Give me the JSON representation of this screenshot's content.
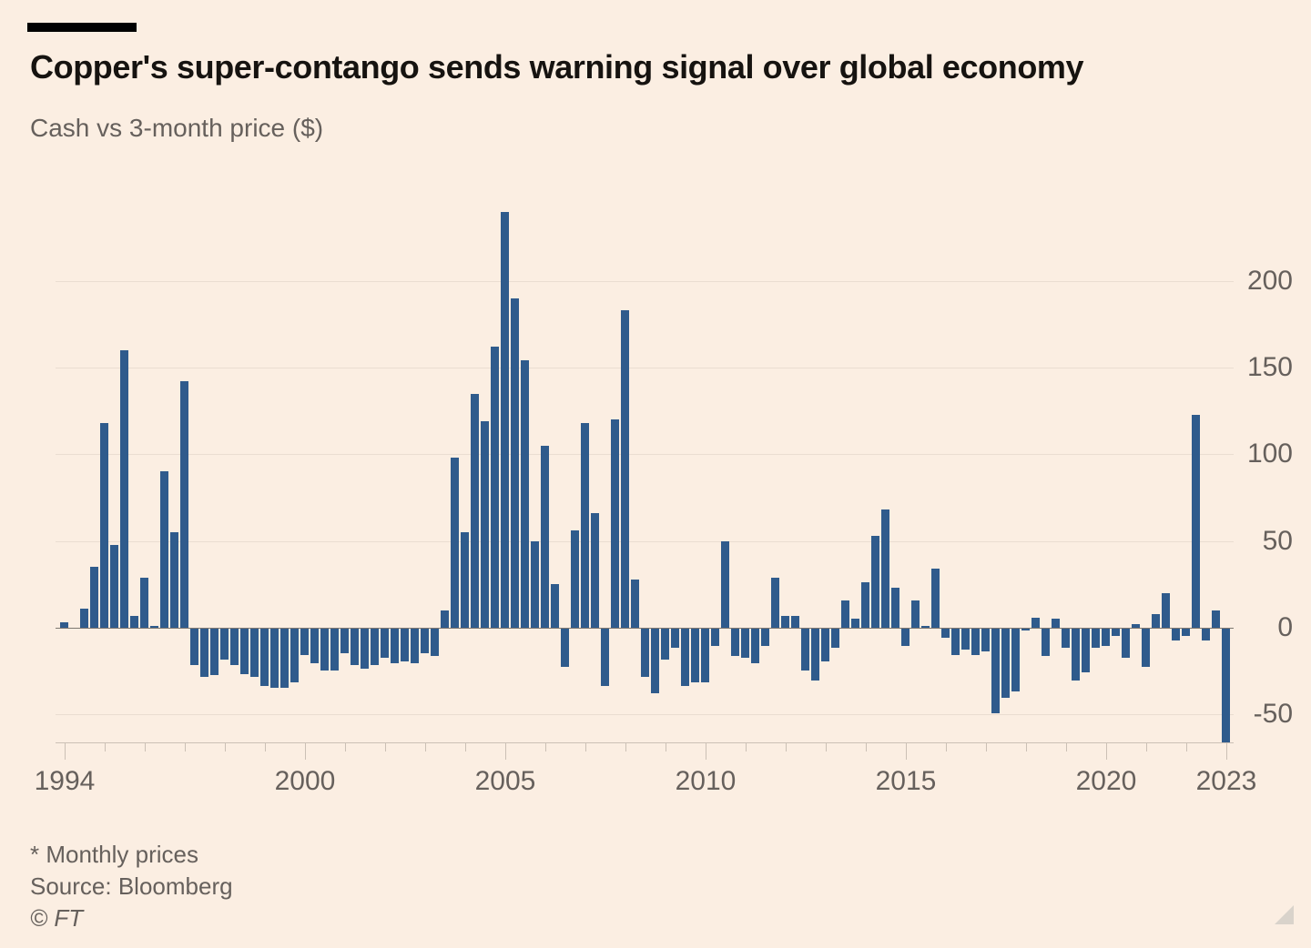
{
  "header": {
    "title": "Copper's super-contango sends warning signal over global economy",
    "subtitle": "Cash vs 3-month price ($)"
  },
  "footer": {
    "footnote": "* Monthly prices",
    "source": "Source: Bloomberg",
    "copyright": "© FT"
  },
  "colors": {
    "background": "#fbeee2",
    "bar": "#2f5b8c",
    "grid": "#eaddd1",
    "zero_line": "#7d7770",
    "axis": "#cbc0b5",
    "muted_text": "#66605c",
    "title_text": "#161310",
    "kicker_bar": "#000000",
    "resize_triangle": "#d9d3cb"
  },
  "chart_data": {
    "type": "bar",
    "title": "Copper's super-contango sends warning signal over global economy",
    "subtitle": "Cash vs 3-month price ($)",
    "xlabel": "",
    "ylabel": "Cash vs 3-month price ($)",
    "grid": true,
    "legend": false,
    "zero_line": true,
    "ylim": [
      -70,
      245
    ],
    "yticks": [
      200,
      150,
      100,
      50,
      0,
      -50
    ],
    "xticks_labeled": [
      1994,
      2000,
      2005,
      2010,
      2015,
      2020,
      2023
    ],
    "xticks_minor_every_year": true,
    "x_start": "1994-Q1",
    "x_end": "2023-Q1",
    "periods_per_year": 4,
    "values": [
      3,
      0,
      11,
      35,
      118,
      48,
      160,
      7,
      29,
      1,
      90,
      55,
      142,
      -21,
      -28,
      -27,
      -18,
      -21,
      -26,
      -28,
      -33,
      -34,
      -34,
      -31,
      -15,
      -20,
      -24,
      -24,
      -14,
      -21,
      -23,
      -21,
      -17,
      -20,
      -19,
      -20,
      -14,
      -16,
      10,
      98,
      55,
      135,
      119,
      162,
      240,
      190,
      154,
      50,
      105,
      25,
      -22,
      56,
      118,
      66,
      -33,
      120,
      183,
      28,
      -28,
      -37,
      -18,
      -11,
      -33,
      -31,
      -31,
      -10,
      50,
      -16,
      -17,
      -20,
      -10,
      29,
      7,
      7,
      -24,
      -30,
      -19,
      -11,
      16,
      5,
      26,
      53,
      68,
      23,
      -10,
      16,
      1,
      34,
      -5,
      -15,
      -12,
      -15,
      -13,
      -49,
      -40,
      -36,
      -1,
      6,
      -16,
      5,
      -11,
      -30,
      -25,
      -11,
      -10,
      -4,
      -17,
      2,
      -22,
      8,
      20,
      -7,
      -4,
      123,
      -7,
      10,
      -66
    ]
  }
}
